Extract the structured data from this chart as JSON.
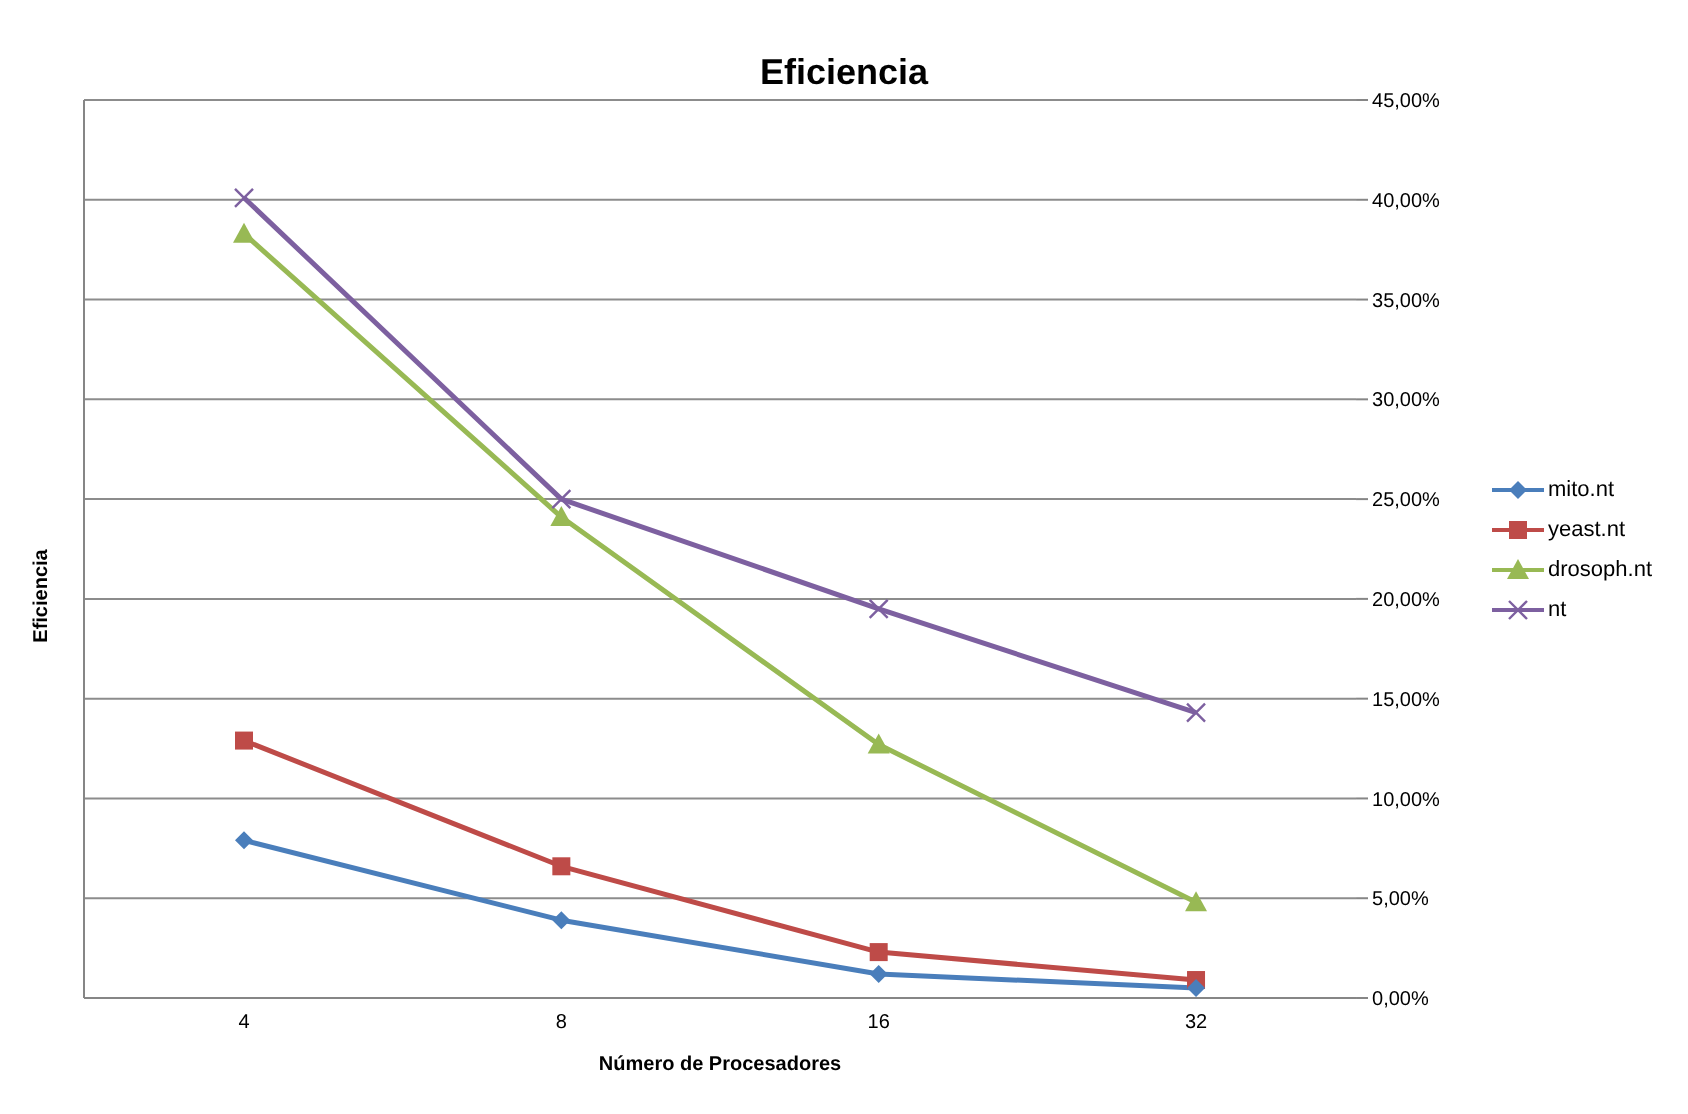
{
  "chart_data": {
    "type": "line",
    "title": "Eficiencia",
    "xlabel": "Número de Procesadores",
    "ylabel": "Eficiencia",
    "categories": [
      "4",
      "8",
      "16",
      "32"
    ],
    "series": [
      {
        "name": "mito.nt",
        "color": "#4a7ebb",
        "marker": "diamond",
        "values": [
          7.9,
          3.9,
          1.2,
          0.5
        ]
      },
      {
        "name": "yeast.nt",
        "color": "#be4b48",
        "marker": "square",
        "values": [
          12.9,
          6.6,
          2.3,
          0.9
        ]
      },
      {
        "name": "drosoph.nt",
        "color": "#98b954",
        "marker": "triangle",
        "values": [
          38.3,
          24.1,
          12.7,
          4.8
        ]
      },
      {
        "name": "nt",
        "color": "#7d60a0",
        "marker": "cross",
        "values": [
          40.1,
          25.0,
          19.5,
          14.3
        ]
      }
    ],
    "ylim": [
      0,
      45
    ],
    "yticks": [
      {
        "value": 0,
        "label": "0,00%"
      },
      {
        "value": 5,
        "label": "5,00%"
      },
      {
        "value": 10,
        "label": "10,00%"
      },
      {
        "value": 15,
        "label": "15,00%"
      },
      {
        "value": 20,
        "label": "20,00%"
      },
      {
        "value": 25,
        "label": "25,00%"
      },
      {
        "value": 30,
        "label": "30,00%"
      },
      {
        "value": 35,
        "label": "35,00%"
      },
      {
        "value": 40,
        "label": "40,00%"
      },
      {
        "value": 45,
        "label": "45,00%"
      }
    ],
    "grid": "y",
    "legend": "right",
    "line_style": "solid"
  }
}
